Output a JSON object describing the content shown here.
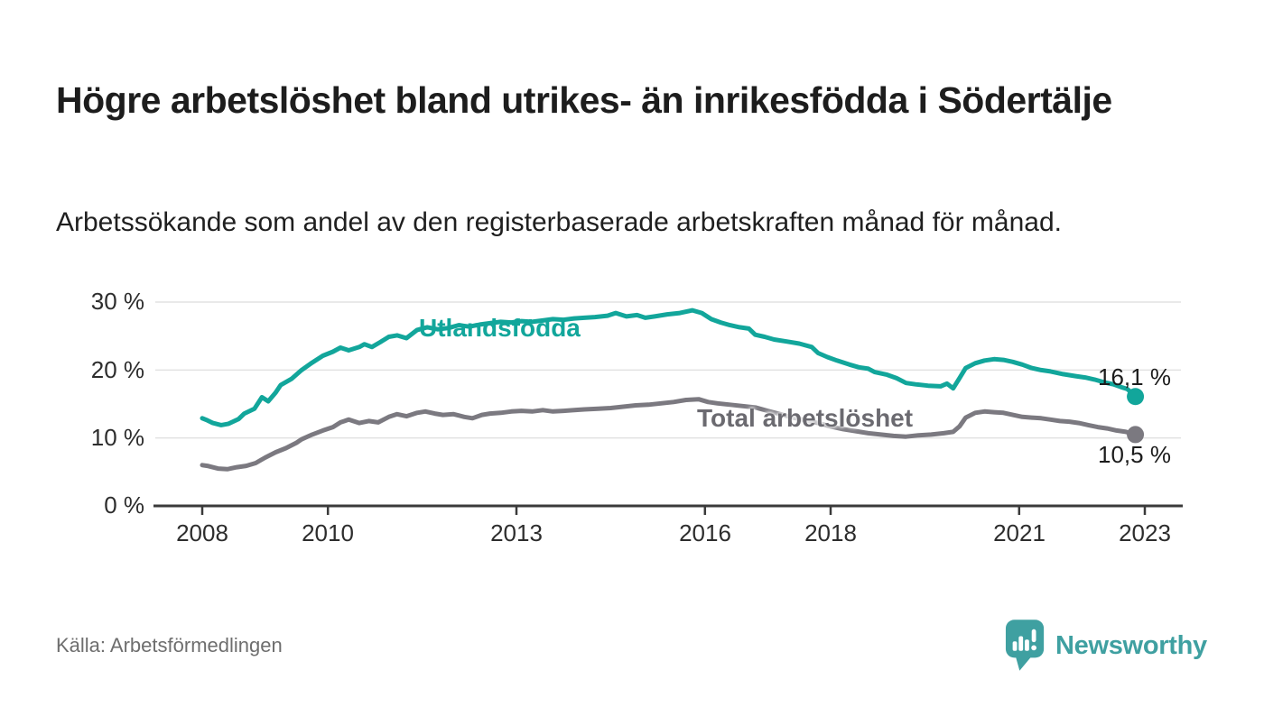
{
  "header": {
    "title": "Högre arbetslöshet bland utrikes- än inrikesfödda i Södertälje",
    "subtitle": "Arbetssökande som andel av den registerbaserade arbetskraften månad för månad."
  },
  "footer": {
    "source": "Källa: Arbetsförmedlingen",
    "brand_name": "Newsworthy"
  },
  "colors": {
    "accent_teal": "#12a69b",
    "line_gray": "#7b7980",
    "label_gray": "#6b6a70",
    "logo_teal": "#3fa0a1",
    "grid": "#e2e2e2",
    "axis": "#3a3a3a"
  },
  "chart_data": {
    "type": "line",
    "title": "Högre arbetslöshet bland utrikes- än inrikesfödda i Södertälje",
    "subtitle": "Arbetssökande som andel av den registerbaserade arbetskraften månad för månad.",
    "grid": "horizontal",
    "legend": "inline-labels",
    "x_axis": {
      "ticks": [
        2008,
        2010,
        2013,
        2016,
        2018,
        2021,
        2023
      ],
      "labels": [
        "2008",
        "2010",
        "2013",
        "2016",
        "2018",
        "2021",
        "2023"
      ],
      "range": [
        2007.25,
        2023.6
      ]
    },
    "y_axis": {
      "unit": "%",
      "ticks": [
        30,
        20,
        10,
        0
      ],
      "labels": [
        "30 %",
        "20 %",
        "10 %",
        "0 %"
      ],
      "range": [
        0,
        30
      ]
    },
    "series": [
      {
        "name": "Utlandsfödda",
        "color": "#12a69b",
        "end_value": 16.1,
        "end_label": "16,1 %",
        "points": [
          [
            2008.0,
            12.9
          ],
          [
            2008.08,
            12.6
          ],
          [
            2008.17,
            12.2
          ],
          [
            2008.3,
            11.9
          ],
          [
            2008.42,
            12.1
          ],
          [
            2008.58,
            12.8
          ],
          [
            2008.67,
            13.6
          ],
          [
            2008.83,
            14.3
          ],
          [
            2008.95,
            16.0
          ],
          [
            2009.05,
            15.4
          ],
          [
            2009.17,
            16.7
          ],
          [
            2009.25,
            17.8
          ],
          [
            2009.42,
            18.7
          ],
          [
            2009.58,
            20.0
          ],
          [
            2009.75,
            21.1
          ],
          [
            2009.92,
            22.1
          ],
          [
            2010.08,
            22.7
          ],
          [
            2010.2,
            23.3
          ],
          [
            2010.33,
            22.9
          ],
          [
            2010.5,
            23.4
          ],
          [
            2010.58,
            23.8
          ],
          [
            2010.7,
            23.4
          ],
          [
            2010.83,
            24.1
          ],
          [
            2010.97,
            24.9
          ],
          [
            2011.1,
            25.1
          ],
          [
            2011.25,
            24.7
          ],
          [
            2011.42,
            25.9
          ],
          [
            2011.58,
            26.3
          ],
          [
            2011.75,
            26.0
          ],
          [
            2011.92,
            26.2
          ],
          [
            2012.08,
            26.6
          ],
          [
            2012.25,
            26.4
          ],
          [
            2012.42,
            26.7
          ],
          [
            2012.58,
            26.9
          ],
          [
            2012.75,
            27.1
          ],
          [
            2012.92,
            27.0
          ],
          [
            2013.08,
            27.2
          ],
          [
            2013.25,
            27.1
          ],
          [
            2013.42,
            27.3
          ],
          [
            2013.58,
            27.5
          ],
          [
            2013.75,
            27.4
          ],
          [
            2013.92,
            27.6
          ],
          [
            2014.08,
            27.7
          ],
          [
            2014.25,
            27.8
          ],
          [
            2014.45,
            28.0
          ],
          [
            2014.58,
            28.4
          ],
          [
            2014.75,
            27.9
          ],
          [
            2014.92,
            28.1
          ],
          [
            2015.05,
            27.7
          ],
          [
            2015.2,
            27.9
          ],
          [
            2015.4,
            28.2
          ],
          [
            2015.6,
            28.4
          ],
          [
            2015.8,
            28.8
          ],
          [
            2015.95,
            28.4
          ],
          [
            2016.1,
            27.5
          ],
          [
            2016.25,
            27.0
          ],
          [
            2016.4,
            26.6
          ],
          [
            2016.55,
            26.3
          ],
          [
            2016.7,
            26.1
          ],
          [
            2016.8,
            25.2
          ],
          [
            2016.95,
            24.9
          ],
          [
            2017.1,
            24.5
          ],
          [
            2017.3,
            24.2
          ],
          [
            2017.5,
            23.9
          ],
          [
            2017.7,
            23.4
          ],
          [
            2017.8,
            22.5
          ],
          [
            2017.95,
            21.9
          ],
          [
            2018.1,
            21.4
          ],
          [
            2018.3,
            20.8
          ],
          [
            2018.45,
            20.4
          ],
          [
            2018.6,
            20.2
          ],
          [
            2018.7,
            19.7
          ],
          [
            2018.9,
            19.3
          ],
          [
            2019.05,
            18.8
          ],
          [
            2019.2,
            18.1
          ],
          [
            2019.35,
            17.9
          ],
          [
            2019.55,
            17.7
          ],
          [
            2019.75,
            17.6
          ],
          [
            2019.85,
            18.0
          ],
          [
            2019.95,
            17.3
          ],
          [
            2020.05,
            18.8
          ],
          [
            2020.15,
            20.3
          ],
          [
            2020.3,
            21.0
          ],
          [
            2020.45,
            21.4
          ],
          [
            2020.6,
            21.6
          ],
          [
            2020.75,
            21.5
          ],
          [
            2020.9,
            21.2
          ],
          [
            2021.05,
            20.8
          ],
          [
            2021.2,
            20.3
          ],
          [
            2021.35,
            20.0
          ],
          [
            2021.5,
            19.8
          ],
          [
            2021.7,
            19.4
          ],
          [
            2021.9,
            19.1
          ],
          [
            2022.05,
            18.9
          ],
          [
            2022.2,
            18.6
          ],
          [
            2022.35,
            18.2
          ],
          [
            2022.5,
            17.9
          ],
          [
            2022.62,
            17.5
          ],
          [
            2022.72,
            17.2
          ],
          [
            2022.8,
            16.6
          ],
          [
            2022.85,
            16.1
          ]
        ]
      },
      {
        "name": "Total arbetslöshet",
        "color": "#7b7980",
        "end_value": 10.5,
        "end_label": "10,5 %",
        "points": [
          [
            2008.0,
            6.0
          ],
          [
            2008.08,
            5.9
          ],
          [
            2008.25,
            5.5
          ],
          [
            2008.4,
            5.4
          ],
          [
            2008.55,
            5.7
          ],
          [
            2008.7,
            5.9
          ],
          [
            2008.85,
            6.3
          ],
          [
            2009.0,
            7.1
          ],
          [
            2009.17,
            7.9
          ],
          [
            2009.33,
            8.5
          ],
          [
            2009.5,
            9.3
          ],
          [
            2009.58,
            9.8
          ],
          [
            2009.75,
            10.5
          ],
          [
            2009.92,
            11.1
          ],
          [
            2010.08,
            11.6
          ],
          [
            2010.2,
            12.3
          ],
          [
            2010.33,
            12.7
          ],
          [
            2010.5,
            12.2
          ],
          [
            2010.65,
            12.5
          ],
          [
            2010.8,
            12.3
          ],
          [
            2010.97,
            13.1
          ],
          [
            2011.1,
            13.5
          ],
          [
            2011.25,
            13.2
          ],
          [
            2011.42,
            13.7
          ],
          [
            2011.55,
            13.9
          ],
          [
            2011.7,
            13.6
          ],
          [
            2011.83,
            13.4
          ],
          [
            2012.0,
            13.5
          ],
          [
            2012.17,
            13.1
          ],
          [
            2012.3,
            12.9
          ],
          [
            2012.45,
            13.4
          ],
          [
            2012.58,
            13.6
          ],
          [
            2012.75,
            13.7
          ],
          [
            2012.92,
            13.9
          ],
          [
            2013.08,
            14.0
          ],
          [
            2013.25,
            13.9
          ],
          [
            2013.42,
            14.1
          ],
          [
            2013.58,
            13.9
          ],
          [
            2013.75,
            14.0
          ],
          [
            2013.92,
            14.1
          ],
          [
            2014.08,
            14.2
          ],
          [
            2014.3,
            14.3
          ],
          [
            2014.5,
            14.4
          ],
          [
            2014.7,
            14.6
          ],
          [
            2014.9,
            14.8
          ],
          [
            2015.1,
            14.9
          ],
          [
            2015.3,
            15.1
          ],
          [
            2015.5,
            15.3
          ],
          [
            2015.7,
            15.6
          ],
          [
            2015.9,
            15.7
          ],
          [
            2016.05,
            15.3
          ],
          [
            2016.2,
            15.1
          ],
          [
            2016.4,
            14.9
          ],
          [
            2016.6,
            14.7
          ],
          [
            2016.8,
            14.5
          ],
          [
            2017.0,
            14.0
          ],
          [
            2017.2,
            13.5
          ],
          [
            2017.4,
            13.0
          ],
          [
            2017.6,
            12.6
          ],
          [
            2017.8,
            12.2
          ],
          [
            2018.0,
            11.7
          ],
          [
            2018.2,
            11.3
          ],
          [
            2018.4,
            11.0
          ],
          [
            2018.6,
            10.7
          ],
          [
            2018.8,
            10.5
          ],
          [
            2019.0,
            10.3
          ],
          [
            2019.2,
            10.2
          ],
          [
            2019.4,
            10.4
          ],
          [
            2019.6,
            10.5
          ],
          [
            2019.8,
            10.7
          ],
          [
            2019.95,
            10.9
          ],
          [
            2020.05,
            11.7
          ],
          [
            2020.15,
            13.0
          ],
          [
            2020.3,
            13.7
          ],
          [
            2020.45,
            13.9
          ],
          [
            2020.6,
            13.8
          ],
          [
            2020.75,
            13.7
          ],
          [
            2020.9,
            13.4
          ],
          [
            2021.05,
            13.1
          ],
          [
            2021.2,
            13.0
          ],
          [
            2021.35,
            12.9
          ],
          [
            2021.5,
            12.7
          ],
          [
            2021.65,
            12.5
          ],
          [
            2021.8,
            12.4
          ],
          [
            2021.95,
            12.2
          ],
          [
            2022.1,
            11.9
          ],
          [
            2022.25,
            11.6
          ],
          [
            2022.4,
            11.4
          ],
          [
            2022.55,
            11.1
          ],
          [
            2022.7,
            10.9
          ],
          [
            2022.78,
            10.7
          ],
          [
            2022.85,
            10.5
          ]
        ]
      }
    ]
  }
}
